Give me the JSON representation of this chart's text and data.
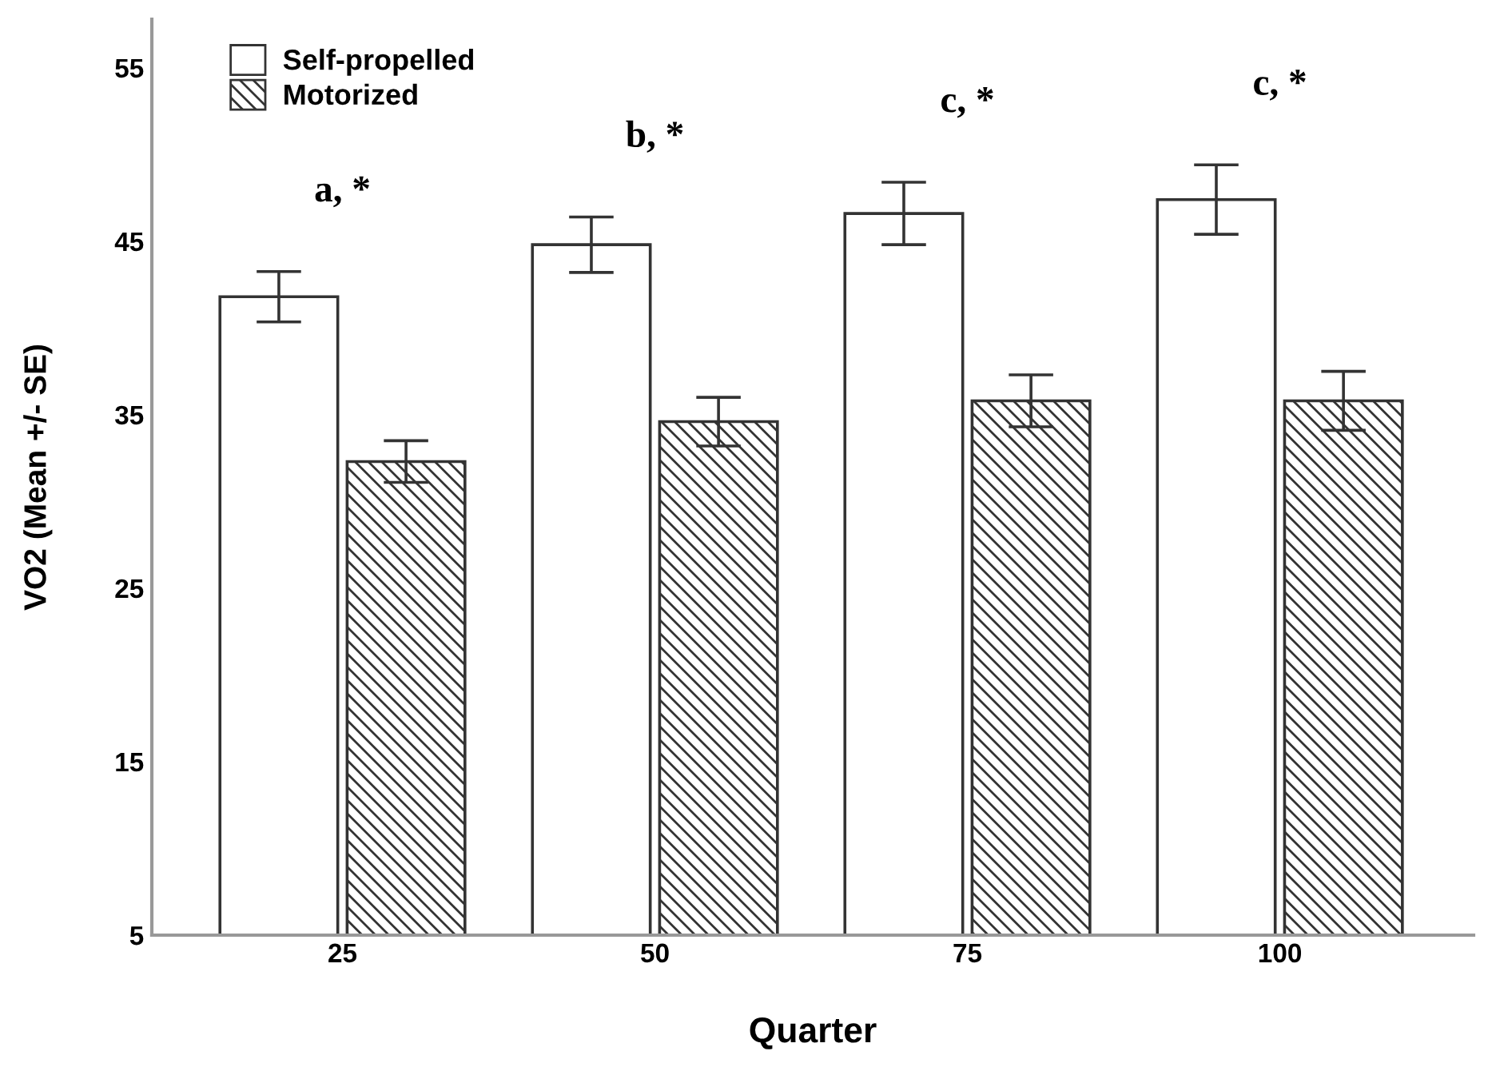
{
  "chart_data": {
    "type": "bar",
    "xlabel": "Quarter",
    "ylabel": "VO2 (Mean +/- SE)",
    "categories": [
      "25",
      "50",
      "75",
      "100"
    ],
    "series": [
      {
        "name": "Self-propelled",
        "color": "#ffffff",
        "values": [
          41.8,
          44.8,
          46.6,
          47.4
        ],
        "errors": [
          1.45,
          1.6,
          1.8,
          2.0
        ]
      },
      {
        "name": "Motorized",
        "color": "#333333",
        "values": [
          32.3,
          34.6,
          35.8,
          35.8
        ],
        "errors": [
          1.2,
          1.4,
          1.5,
          1.7
        ]
      }
    ],
    "ylim": [
      5,
      57.8
    ],
    "yticks": [
      5,
      15,
      25,
      35,
      45,
      55
    ],
    "annotations": [
      "a, *",
      "b, *",
      "c, *",
      "c, *"
    ],
    "legend": "top left",
    "grid": false
  }
}
